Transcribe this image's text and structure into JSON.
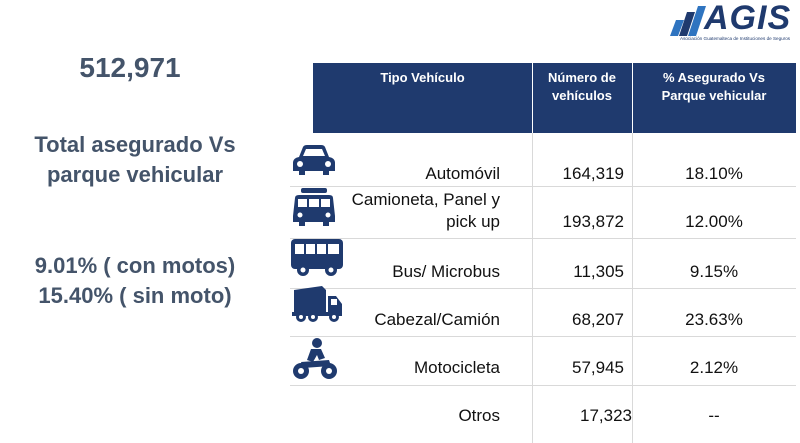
{
  "logo": {
    "text": "AGIS",
    "subtitle": "Asociación Guatemalteca de Instituciones de Seguros"
  },
  "summary": {
    "total": "512,971",
    "title_line1": "Total asegurado Vs",
    "title_line2": "parque vehicular",
    "pct_with_motos": "9.01% ( con motos)",
    "pct_without_moto": "15.40% ( sin moto)"
  },
  "table": {
    "headers": {
      "tipo": "Tipo Vehículo",
      "numero_l1": "Número de",
      "numero_l2": "vehículos",
      "pct_l1": "% Asegurado Vs",
      "pct_l2": "Parque vehicular"
    },
    "rows": [
      {
        "icon": "car-icon",
        "tipo_l1": "Automóvil",
        "tipo_l2": "",
        "numero": "164,319",
        "pct": "18.10%"
      },
      {
        "icon": "van-icon",
        "tipo_l1": "Camioneta, Panel y",
        "tipo_l2": "pick up",
        "numero": "193,872",
        "pct": "12.00%"
      },
      {
        "icon": "bus-icon",
        "tipo_l1": "Bus/ Microbus",
        "tipo_l2": "",
        "numero": "11,305",
        "pct": "9.15%"
      },
      {
        "icon": "truck-icon",
        "tipo_l1": "Cabezal/Camión",
        "tipo_l2": "",
        "numero": "68,207",
        "pct": "23.63%"
      },
      {
        "icon": "motorcycle-icon",
        "tipo_l1": "Motocicleta",
        "tipo_l2": "",
        "numero": "57,945",
        "pct": "2.12%"
      },
      {
        "icon": "",
        "tipo_l1": "Otros",
        "tipo_l2": "",
        "numero": "17,323",
        "pct": "--"
      }
    ]
  },
  "colors": {
    "header_bg": "#1f3a6e",
    "summary_text": "#44546a",
    "icon_color": "#1f3a6e"
  }
}
